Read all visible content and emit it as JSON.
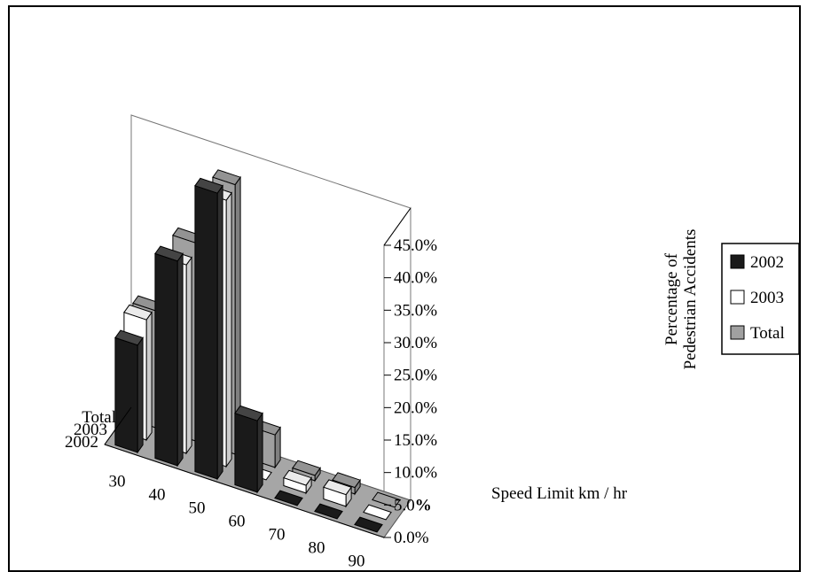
{
  "chart_data": {
    "type": "bar",
    "style": "3d-clustered-column",
    "categories": [
      "30",
      "40",
      "50",
      "60",
      "70",
      "80",
      "90"
    ],
    "series": [
      {
        "name": "2002",
        "values": [
          16.5,
          31.5,
          44.0,
          11.0,
          0.3,
          0.3,
          0.3
        ],
        "color": "#1a1a1a"
      },
      {
        "name": "2003",
        "values": [
          18.5,
          29.0,
          41.0,
          0.3,
          1.2,
          1.8,
          0.3
        ],
        "color": "#ffffff"
      },
      {
        "name": "Total",
        "values": [
          18.0,
          30.5,
          41.5,
          5.0,
          0.8,
          1.0,
          0.3
        ],
        "color": "#a0a0a0"
      }
    ],
    "depth_labels": [
      "Total",
      "2003",
      "2002"
    ],
    "xlabel": "Speed Limit km / hr",
    "ylabel_lines": [
      "Percentage of",
      "Pedestrian Accidents"
    ],
    "ylim": [
      0,
      45
    ],
    "y_ticks": [
      "0.0%",
      "5.0%",
      "10.0%",
      "15.0%",
      "20.0%",
      "25.0%",
      "30.0%",
      "35.0%",
      "40.0%",
      "45.0%"
    ],
    "legend": {
      "placement": "right",
      "entries": [
        "2002",
        "2003",
        "Total"
      ]
    },
    "grid": false,
    "floor_color": "#a6a6a6"
  }
}
